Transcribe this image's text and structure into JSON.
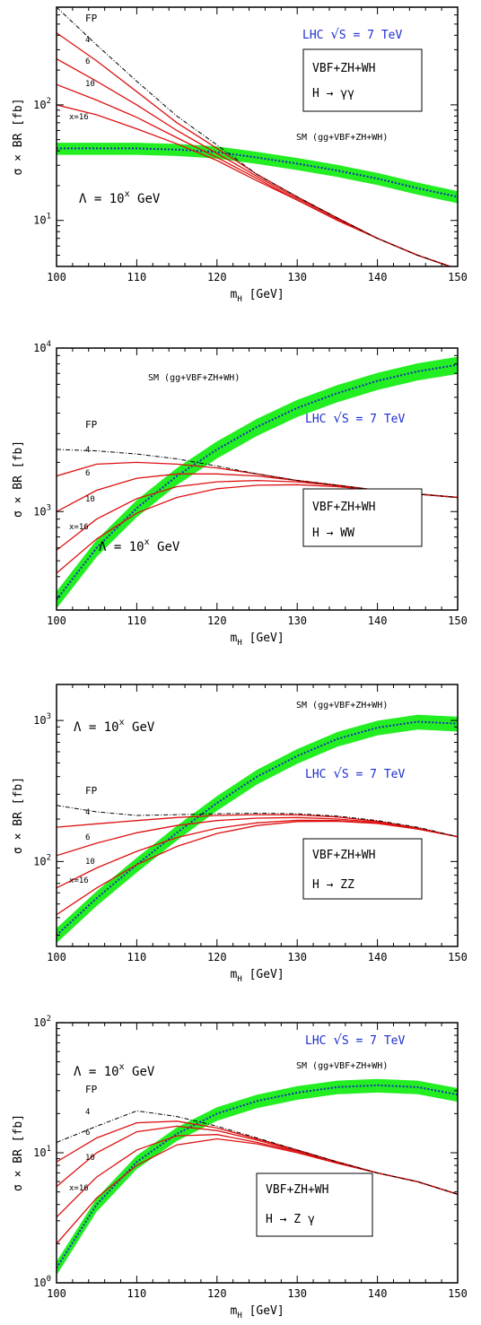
{
  "chart_data": [
    {
      "type": "line",
      "xlabel_main": "m",
      "xlabel_sub": "H",
      "xlabel_unit": "[GeV]",
      "ylabel": "σ × BR [fb]",
      "xlim": [
        100,
        150
      ],
      "ylim": [
        4,
        700
      ],
      "yscale": "log",
      "xticks": [
        "100",
        "110",
        "120",
        "130",
        "140",
        "150"
      ],
      "yticks": [
        {
          "value": 10,
          "base": "10",
          "exp": "1"
        },
        {
          "value": 100,
          "base": "10",
          "exp": "2"
        }
      ],
      "lhc_prefix": "LHC ",
      "lhc_suffix": "S = 7 TeV",
      "sqrt_symbol": "√",
      "box_line1": "VBF+ZH+WH",
      "box_line2": "H → γγ",
      "sm_label": "SM (gg+VBF+ZH+WH)",
      "lambda_label": "Λ = 10",
      "lambda_exp": "x",
      "lambda_unit": "GeV",
      "curve_labels": [
        "FP",
        "4",
        "6",
        "10",
        "x=16"
      ],
      "x": [
        100,
        105,
        110,
        115,
        120,
        125,
        130,
        135,
        140,
        145,
        150
      ],
      "sm": [
        42,
        42,
        42,
        41,
        39,
        35,
        31,
        27,
        23,
        19,
        16
      ],
      "sm_band_frac": 0.12,
      "fp": [
        700,
        330,
        160,
        80,
        45,
        25,
        16,
        10.5,
        7,
        5,
        3.8
      ],
      "series": [
        {
          "name": "4",
          "values": [
            420,
            240,
            130,
            70,
            42,
            25,
            16,
            10.5,
            7,
            5,
            3.8
          ]
        },
        {
          "name": "6",
          "values": [
            250,
            160,
            100,
            60,
            38,
            24,
            15.5,
            10.5,
            7,
            5,
            3.8
          ]
        },
        {
          "name": "10",
          "values": [
            150,
            110,
            78,
            52,
            35,
            23,
            15,
            10.2,
            7,
            5,
            3.8
          ]
        },
        {
          "name": "x=16",
          "values": [
            100,
            82,
            62,
            46,
            33,
            22,
            15,
            10,
            7,
            5,
            3.8
          ]
        }
      ]
    },
    {
      "type": "line",
      "xlabel_main": "m",
      "xlabel_sub": "H",
      "xlabel_unit": "[GeV]",
      "ylabel": "σ × BR [fb]",
      "xlim": [
        100,
        150
      ],
      "ylim": [
        250,
        10000
      ],
      "yscale": "log",
      "xticks": [
        "100",
        "110",
        "120",
        "130",
        "140",
        "150"
      ],
      "yticks": [
        {
          "value": 1000,
          "base": "10",
          "exp": "3"
        },
        {
          "value": 10000,
          "base": "10",
          "exp": "4"
        }
      ],
      "lhc_prefix": "LHC ",
      "lhc_suffix": "S = 7 TeV",
      "sqrt_symbol": "√",
      "box_line1": "VBF+ZH+WH",
      "box_line2": "H → WW",
      "sm_label": "SM (gg+VBF+ZH+WH)",
      "lambda_label": "Λ = 10",
      "lambda_exp": "x",
      "lambda_unit": "GeV",
      "curve_labels": [
        "FP",
        "4",
        "6",
        "10",
        "x=16"
      ],
      "x": [
        100,
        105,
        110,
        115,
        120,
        125,
        130,
        135,
        140,
        145,
        150
      ],
      "sm": [
        290,
        600,
        1050,
        1650,
        2400,
        3300,
        4300,
        5300,
        6300,
        7200,
        7900
      ],
      "sm_band_frac": 0.12,
      "fp": [
        2400,
        2350,
        2250,
        2100,
        1900,
        1700,
        1550,
        1450,
        1350,
        1280,
        1220
      ],
      "series": [
        {
          "name": "4",
          "values": [
            1650,
            1950,
            2000,
            1950,
            1850,
            1700,
            1550,
            1450,
            1350,
            1280,
            1220
          ]
        },
        {
          "name": "6",
          "values": [
            1000,
            1350,
            1600,
            1700,
            1700,
            1650,
            1550,
            1450,
            1350,
            1280,
            1220
          ]
        },
        {
          "name": "10",
          "values": [
            580,
            900,
            1200,
            1420,
            1520,
            1550,
            1520,
            1440,
            1350,
            1280,
            1220
          ]
        },
        {
          "name": "x=16",
          "values": [
            420,
            680,
            980,
            1220,
            1380,
            1450,
            1460,
            1420,
            1350,
            1280,
            1220
          ]
        }
      ]
    },
    {
      "type": "line",
      "xlabel_main": "m",
      "xlabel_sub": "H",
      "xlabel_unit": "[GeV]",
      "ylabel": "σ × BR [fb]",
      "xlim": [
        100,
        150
      ],
      "ylim": [
        25,
        1800
      ],
      "yscale": "log",
      "xticks": [
        "100",
        "110",
        "120",
        "130",
        "140",
        "150"
      ],
      "yticks": [
        {
          "value": 100,
          "base": "10",
          "exp": "2"
        },
        {
          "value": 1000,
          "base": "10",
          "exp": "3"
        }
      ],
      "lhc_prefix": "LHC ",
      "lhc_suffix": "S = 7 TeV",
      "sqrt_symbol": "√",
      "box_line1": "VBF+ZH+WH",
      "box_line2": "H → ZZ",
      "sm_label": "SM (gg+VBF+ZH+WH)",
      "lambda_label": "Λ = 10",
      "lambda_exp": "x",
      "lambda_unit": "GeV",
      "curve_labels": [
        "FP",
        "4",
        "6",
        "10",
        "x=16"
      ],
      "x": [
        100,
        105,
        110,
        115,
        120,
        125,
        130,
        135,
        140,
        145,
        150
      ],
      "sm": [
        30,
        55,
        95,
        160,
        260,
        400,
        560,
        740,
        890,
        980,
        950
      ],
      "sm_band_frac": 0.12,
      "fp": [
        250,
        225,
        212,
        215,
        218,
        220,
        218,
        210,
        195,
        175,
        150
      ],
      "series": [
        {
          "name": "4",
          "values": [
            175,
            185,
            195,
            205,
            212,
            215,
            214,
            207,
            193,
            173,
            150
          ]
        },
        {
          "name": "6",
          "values": [
            110,
            135,
            160,
            180,
            195,
            203,
            205,
            200,
            190,
            172,
            150
          ]
        },
        {
          "name": "10",
          "values": [
            65,
            90,
            118,
            148,
            172,
            188,
            196,
            195,
            187,
            170,
            150
          ]
        },
        {
          "name": "x=16",
          "values": [
            42,
            65,
            95,
            128,
            158,
            180,
            192,
            193,
            186,
            170,
            150
          ]
        }
      ]
    },
    {
      "type": "line",
      "xlabel_main": "m",
      "xlabel_sub": "H",
      "xlabel_unit": "[GeV]",
      "ylabel": "σ × BR [fb]",
      "xlim": [
        100,
        150
      ],
      "ylim": [
        1,
        100
      ],
      "yscale": "log",
      "xticks": [
        "100",
        "110",
        "120",
        "130",
        "140",
        "150"
      ],
      "yticks": [
        {
          "value": 1,
          "base": "10",
          "exp": "0"
        },
        {
          "value": 10,
          "base": "10",
          "exp": "1"
        },
        {
          "value": 100,
          "base": "10",
          "exp": "2"
        }
      ],
      "lhc_prefix": "LHC ",
      "lhc_suffix": "S = 7 TeV",
      "sqrt_symbol": "√",
      "box_line1": "VBF+ZH+WH",
      "box_line2": "H → Z γ",
      "sm_label": "SM (gg+VBF+ZH+WH)",
      "lambda_label": "Λ = 10",
      "lambda_exp": "x",
      "lambda_unit": "GeV",
      "curve_labels": [
        "FP",
        "4",
        "6",
        "10",
        "x=16"
      ],
      "x": [
        100,
        105,
        110,
        115,
        120,
        125,
        130,
        135,
        140,
        145,
        150
      ],
      "sm": [
        1.3,
        4,
        8.5,
        14,
        20,
        25,
        29,
        32,
        33,
        32,
        28
      ],
      "sm_band_frac": 0.12,
      "fp": [
        12,
        16,
        21,
        19,
        16,
        13,
        10.5,
        8.5,
        7,
        6,
        4.8
      ],
      "series": [
        {
          "name": "4",
          "values": [
            8.5,
            13,
            17,
            17.5,
            15.5,
            12.8,
            10.5,
            8.5,
            7,
            6,
            4.8
          ]
        },
        {
          "name": "6",
          "values": [
            5.5,
            10,
            14.5,
            16,
            14.8,
            12.5,
            10.3,
            8.5,
            7,
            6,
            4.8
          ]
        },
        {
          "name": "10",
          "values": [
            3.2,
            6.5,
            10.5,
            13.5,
            13.8,
            12,
            10.2,
            8.4,
            7,
            6,
            4.8
          ]
        },
        {
          "name": "x=16",
          "values": [
            2,
            4.5,
            8,
            11.5,
            12.8,
            11.7,
            10,
            8.3,
            7,
            6,
            4.8
          ]
        }
      ]
    }
  ]
}
